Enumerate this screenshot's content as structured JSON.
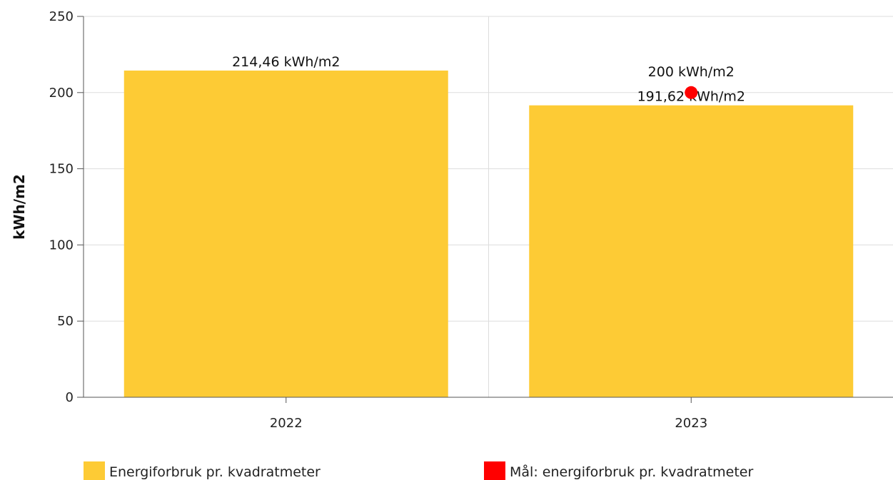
{
  "chart_data": {
    "type": "bar",
    "categories": [
      "2022",
      "2023"
    ],
    "series": [
      {
        "name": "Energiforbruk pr. kvadratmeter",
        "kind": "bar",
        "color": "#fdcb35",
        "values": [
          214.46,
          191.62
        ],
        "data_labels": [
          "214,46 kWh/m2",
          "191,62 kWh/m2"
        ]
      },
      {
        "name": "Mål: energiforbruk pr. kvadratmeter",
        "kind": "point",
        "color": "#ff0000",
        "values": [
          null,
          200
        ],
        "data_labels": [
          "",
          "200 kWh/m2"
        ]
      }
    ],
    "ylabel": "kWh/m2",
    "xlabel": "",
    "ylim": [
      0,
      250
    ],
    "yticks": [
      0,
      50,
      100,
      150,
      200,
      250
    ],
    "grid": true,
    "legend_position": "bottom"
  }
}
